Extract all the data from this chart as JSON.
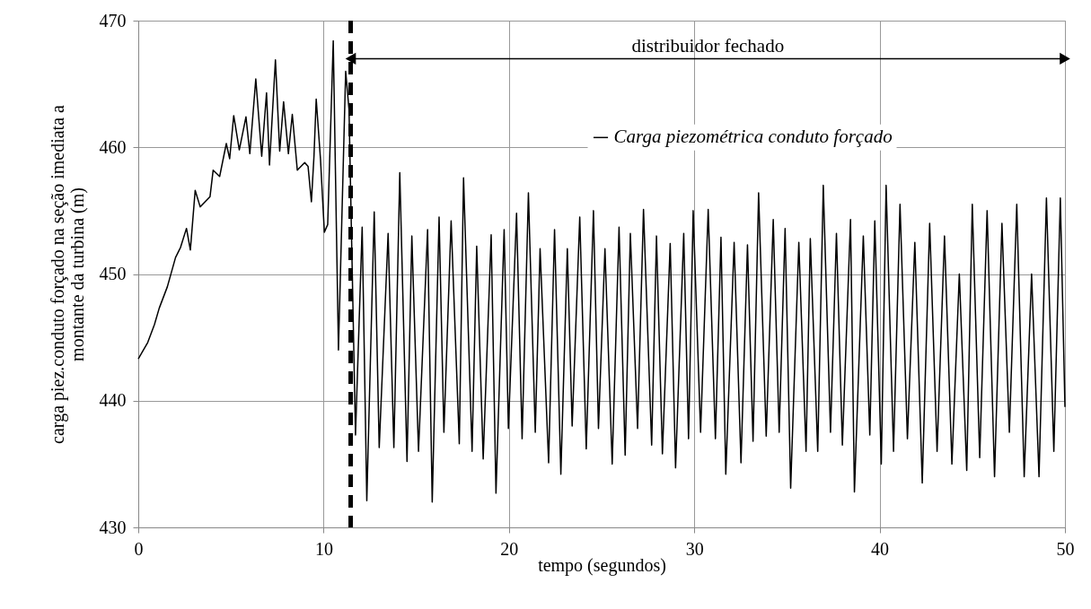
{
  "chart_data": {
    "type": "line",
    "xlabel": "tempo (segundos)",
    "ylabel": "carga piez.conduto  forçado na seção imediata a\nmontante da turbina (m)",
    "xlim": [
      0,
      50
    ],
    "xticks": [
      0,
      10,
      20,
      30,
      40,
      50
    ],
    "ylim": [
      430,
      470
    ],
    "yticks": [
      430,
      440,
      450,
      460,
      470
    ],
    "grid": true,
    "legend": "top right",
    "x": [
      0,
      0.51,
      0.87,
      1.13,
      1.57,
      2.01,
      2.28,
      2.6,
      2.81,
      3.07,
      3.34,
      3.87,
      4.04,
      4.39,
      4.75,
      4.93,
      5.15,
      5.45,
      5.81,
      6.02,
      6.34,
      6.66,
      6.92,
      7.08,
      7.4,
      7.63,
      7.84,
      8.1,
      8.31,
      8.58,
      8.98,
      9.16,
      9.34,
      9.48,
      9.6,
      9.83,
      10.04,
      10.22,
      10.52,
      10.8,
      11.19,
      11.37,
      11.72,
      12.08,
      12.33,
      12.73,
      13.0,
      13.48,
      13.79,
      14.11,
      14.5,
      14.76,
      15.12,
      15.61,
      15.86,
      16.23,
      16.49,
      16.88,
      17.32,
      17.55,
      18.01,
      18.26,
      18.61,
      19.04,
      19.3,
      19.74,
      19.97,
      20.41,
      20.71,
      21.05,
      21.42,
      21.68,
      22.14,
      22.46,
      22.8,
      23.15,
      23.41,
      23.82,
      24.17,
      24.56,
      24.83,
      25.18,
      25.57,
      25.94,
      26.27,
      26.55,
      26.94,
      27.26,
      27.7,
      27.96,
      28.28,
      28.7,
      28.99,
      29.43,
      29.69,
      29.94,
      30.34,
      30.75,
      31.14,
      31.44,
      31.7,
      32.15,
      32.52,
      32.87,
      33.17,
      33.47,
      33.88,
      34.26,
      34.58,
      34.9,
      35.2,
      35.64,
      36.03,
      36.26,
      36.66,
      36.96,
      37.35,
      37.67,
      37.99,
      38.43,
      38.64,
      39.12,
      39.47,
      39.74,
      40.09,
      40.35,
      40.75,
      41.1,
      41.5,
      41.9,
      42.3,
      42.7,
      43.1,
      43.5,
      43.9,
      44.3,
      44.7,
      45.0,
      45.4,
      45.8,
      46.2,
      46.6,
      47.0,
      47.4,
      47.8,
      48.2,
      48.6,
      49.0,
      49.4,
      49.75,
      50
    ],
    "series": [
      {
        "name": "Carga piezométrica conduto forçado",
        "color": "#000000",
        "values": [
          443.3,
          444.6,
          446.0,
          447.3,
          449.0,
          451.3,
          452.1,
          453.6,
          451.9,
          456.6,
          455.3,
          456.1,
          458.2,
          457.7,
          460.3,
          459.1,
          462.5,
          459.8,
          462.4,
          459.5,
          465.4,
          459.3,
          464.3,
          458.6,
          466.9,
          459.7,
          463.6,
          459.5,
          462.6,
          458.2,
          458.8,
          458.5,
          455.7,
          459.3,
          463.8,
          459.1,
          453.3,
          453.9,
          468.4,
          444.0,
          466.0,
          463.0,
          437.3,
          453.7,
          432.1,
          454.9,
          436.3,
          453.2,
          436.3,
          458.0,
          435.2,
          453.0,
          436.0,
          453.5,
          432.0,
          454.5,
          437.5,
          454.2,
          436.6,
          457.6,
          436.0,
          452.2,
          435.4,
          453.1,
          432.7,
          453.5,
          437.8,
          454.8,
          437.0,
          456.4,
          437.5,
          452.0,
          435.1,
          453.5,
          434.2,
          452.0,
          438.0,
          454.5,
          436.2,
          455.0,
          437.8,
          452.0,
          435.0,
          453.7,
          435.7,
          453.2,
          437.8,
          455.1,
          436.5,
          453.0,
          435.8,
          452.4,
          434.7,
          453.2,
          437.0,
          455.0,
          437.5,
          455.1,
          437.0,
          452.9,
          434.2,
          452.5,
          435.1,
          452.3,
          436.8,
          456.4,
          437.2,
          454.3,
          437.5,
          453.6,
          433.1,
          452.5,
          436.0,
          452.8,
          436.0,
          457.0,
          437.5,
          453.2,
          436.5,
          454.3,
          432.8,
          453.0,
          437.3,
          454.2,
          435.0,
          457.0,
          436,
          455.5,
          437,
          452.5,
          433.5,
          454,
          436,
          453,
          435,
          450,
          434.5,
          455.5,
          435.5,
          455,
          434,
          454,
          437.5,
          455.5,
          434,
          450,
          434,
          456,
          436,
          456,
          439.5
        ]
      }
    ],
    "ref_lines": [
      {
        "axis": "x",
        "value": 11.46,
        "color": "#000000",
        "line_style": "dashed"
      }
    ],
    "annotations": [
      "distribuidor fechado"
    ]
  }
}
